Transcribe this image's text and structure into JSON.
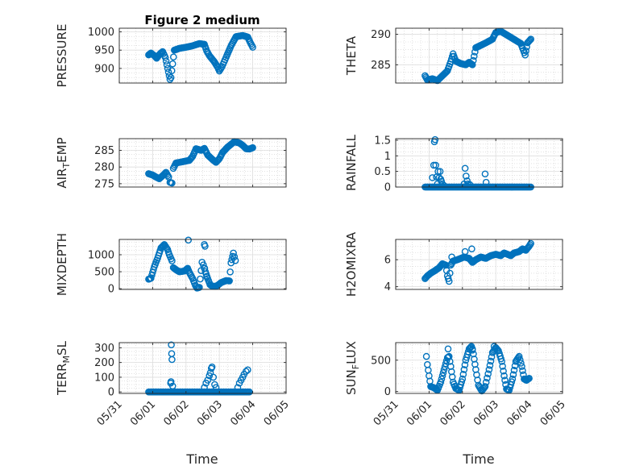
{
  "title": "Figure 2 medium",
  "colors": {
    "marker": "#0072BD",
    "axis": "#262626",
    "grid": "#cfcfcf",
    "background": "#ffffff"
  },
  "chart_data": [
    {
      "type": "scatter",
      "ylabel": "PRESSURE",
      "ylim": [
        860,
        1010
      ],
      "yticks": [
        900,
        950,
        1000
      ],
      "xlim": [
        0,
        5
      ],
      "xticks": [
        0,
        1,
        2,
        3,
        4,
        5
      ],
      "xticklabels": [
        "05/31",
        "06/01",
        "06/02",
        "06/03",
        "06/04",
        "06/05"
      ],
      "grid": true,
      "keypoints": [
        [
          0.88,
          937
        ],
        [
          0.95,
          942
        ],
        [
          1.05,
          935
        ],
        [
          1.12,
          928
        ],
        [
          1.22,
          940
        ],
        [
          1.3,
          946
        ],
        [
          1.38,
          930
        ],
        [
          1.45,
          900
        ],
        [
          1.52,
          870
        ],
        [
          1.55,
          875
        ],
        [
          1.65,
          950
        ],
        [
          1.8,
          955
        ],
        [
          2.0,
          958
        ],
        [
          2.2,
          962
        ],
        [
          2.4,
          968
        ],
        [
          2.55,
          966
        ],
        [
          2.62,
          948
        ],
        [
          2.7,
          935
        ],
        [
          2.85,
          918
        ],
        [
          2.95,
          903
        ],
        [
          3.0,
          893
        ],
        [
          3.08,
          905
        ],
        [
          3.2,
          930
        ],
        [
          3.35,
          962
        ],
        [
          3.5,
          987
        ],
        [
          3.7,
          990
        ],
        [
          3.85,
          986
        ],
        [
          3.92,
          972
        ],
        [
          4.0,
          958
        ]
      ]
    },
    {
      "type": "scatter",
      "ylabel": "THETA",
      "ylim": [
        282,
        291
      ],
      "yticks": [
        285,
        290
      ],
      "xlim": [
        0,
        5
      ],
      "xticks": [
        0,
        1,
        2,
        3,
        4,
        5
      ],
      "xticklabels": [
        "05/31",
        "06/01",
        "06/02",
        "06/03",
        "06/04",
        "06/05"
      ],
      "grid": true,
      "keypoints": [
        [
          0.88,
          283.2
        ],
        [
          0.95,
          282.5
        ],
        [
          1.1,
          282.7
        ],
        [
          1.25,
          282.4
        ],
        [
          1.4,
          283.2
        ],
        [
          1.55,
          284.0
        ],
        [
          1.65,
          285.5
        ],
        [
          1.72,
          286.8
        ],
        [
          1.8,
          285.6
        ],
        [
          1.95,
          285.2
        ],
        [
          2.1,
          285.0
        ],
        [
          2.2,
          285.4
        ],
        [
          2.3,
          285.0
        ],
        [
          2.4,
          287.8
        ],
        [
          2.55,
          288.2
        ],
        [
          2.7,
          288.6
        ],
        [
          2.9,
          289.2
        ],
        [
          3.0,
          290.3
        ],
        [
          3.15,
          290.5
        ],
        [
          3.3,
          290.0
        ],
        [
          3.45,
          289.5
        ],
        [
          3.6,
          289.0
        ],
        [
          3.75,
          288.5
        ],
        [
          3.88,
          286.6
        ],
        [
          3.95,
          288.6
        ],
        [
          4.05,
          289.2
        ]
      ]
    },
    {
      "type": "scatter",
      "ylabel": "AIR_TEMP",
      "ylim": [
        274,
        288.5
      ],
      "yticks": [
        275,
        280,
        285
      ],
      "xlim": [
        0,
        5
      ],
      "xticks": [
        0,
        1,
        2,
        3,
        4,
        5
      ],
      "xticklabels": [
        "05/31",
        "06/01",
        "06/02",
        "06/03",
        "06/04",
        "06/05"
      ],
      "grid": true,
      "keypoints": [
        [
          0.88,
          278.0
        ],
        [
          1.0,
          277.6
        ],
        [
          1.1,
          277.0
        ],
        [
          1.2,
          276.5
        ],
        [
          1.3,
          277.4
        ],
        [
          1.4,
          278.4
        ],
        [
          1.48,
          277.0
        ],
        [
          1.52,
          275.4
        ],
        [
          1.58,
          275.2
        ],
        [
          1.62,
          279.6
        ],
        [
          1.7,
          281.2
        ],
        [
          1.9,
          281.6
        ],
        [
          2.1,
          282.0
        ],
        [
          2.2,
          283.2
        ],
        [
          2.3,
          285.5
        ],
        [
          2.45,
          285.0
        ],
        [
          2.55,
          285.6
        ],
        [
          2.65,
          283.6
        ],
        [
          2.8,
          282.2
        ],
        [
          2.9,
          281.4
        ],
        [
          3.0,
          282.5
        ],
        [
          3.1,
          284.4
        ],
        [
          3.25,
          286.0
        ],
        [
          3.45,
          287.6
        ],
        [
          3.6,
          287.2
        ],
        [
          3.7,
          286.5
        ],
        [
          3.8,
          285.5
        ],
        [
          3.9,
          285.4
        ],
        [
          4.0,
          285.8
        ]
      ]
    },
    {
      "type": "scatter",
      "ylabel": "RAINFALL",
      "ylim": [
        0,
        1.55
      ],
      "yticks": [
        0,
        0.5,
        1,
        1.5
      ],
      "yticklabels": [
        "0",
        "0.5",
        "1",
        "1.5"
      ],
      "xlim": [
        0,
        5
      ],
      "xticks": [
        0,
        1,
        2,
        3,
        4,
        5
      ],
      "xticklabels": [
        "05/31",
        "06/01",
        "06/02",
        "06/03",
        "06/04",
        "06/05"
      ],
      "grid": true,
      "baseline": {
        "from": 0.88,
        "to": 4.05,
        "count": 150,
        "value": 0
      },
      "points": [
        [
          1.1,
          0.3
        ],
        [
          1.14,
          0.7
        ],
        [
          1.16,
          1.45
        ],
        [
          1.18,
          1.52
        ],
        [
          1.2,
          0.7
        ],
        [
          1.22,
          0.32
        ],
        [
          1.25,
          0.1
        ],
        [
          1.27,
          0.5
        ],
        [
          1.3,
          0.3
        ],
        [
          1.33,
          0.5
        ],
        [
          1.35,
          0.25
        ],
        [
          1.37,
          0.18
        ],
        [
          1.4,
          0.1
        ],
        [
          1.44,
          0.05
        ],
        [
          2.05,
          0.1
        ],
        [
          2.08,
          0.6
        ],
        [
          2.11,
          0.35
        ],
        [
          2.14,
          0.2
        ],
        [
          2.16,
          0.1
        ],
        [
          2.22,
          0.08
        ],
        [
          2.68,
          0.42
        ],
        [
          2.71,
          0.15
        ]
      ]
    },
    {
      "type": "scatter",
      "ylabel": "MIXDEPTH",
      "ylim": [
        -20,
        1450
      ],
      "yticks": [
        0,
        500,
        1000
      ],
      "xlim": [
        0,
        5
      ],
      "xticks": [
        0,
        1,
        2,
        3,
        4,
        5
      ],
      "xticklabels": [
        "05/31",
        "06/01",
        "06/02",
        "06/03",
        "06/04",
        "06/05"
      ],
      "grid": true,
      "keypoints": [
        [
          0.88,
          280
        ],
        [
          0.95,
          310
        ],
        [
          1.05,
          650
        ],
        [
          1.15,
          900
        ],
        [
          1.25,
          1200
        ],
        [
          1.35,
          1300
        ],
        [
          1.45,
          1150
        ],
        [
          1.5,
          1000
        ],
        [
          1.58,
          820
        ],
        [
          1.62,
          620
        ],
        [
          1.7,
          560
        ],
        [
          1.8,
          500
        ],
        [
          1.95,
          520
        ],
        [
          2.05,
          600
        ],
        [
          2.1,
          480
        ],
        [
          2.2,
          300
        ],
        [
          2.28,
          100
        ],
        [
          2.33,
          20
        ],
        [
          2.4,
          40
        ],
        [
          2.48,
          780
        ],
        [
          2.52,
          700
        ],
        [
          2.58,
          500
        ],
        [
          2.65,
          300
        ],
        [
          2.72,
          120
        ],
        [
          2.78,
          80
        ],
        [
          2.88,
          70
        ],
        [
          2.95,
          100
        ],
        [
          3.05,
          180
        ],
        [
          3.15,
          220
        ],
        [
          3.2,
          240
        ],
        [
          3.3,
          230
        ],
        [
          3.35,
          760
        ],
        [
          3.42,
          1050
        ],
        [
          3.48,
          830
        ]
      ],
      "extra": [
        [
          2.07,
          1430
        ],
        [
          2.55,
          1300
        ],
        [
          2.57,
          1250
        ],
        [
          2.56,
          600
        ],
        [
          2.62,
          350
        ]
      ]
    },
    {
      "type": "scatter",
      "ylabel": "H2OMIXRA",
      "ylim": [
        3.8,
        7.5
      ],
      "yticks": [
        4,
        6
      ],
      "xlim": [
        0,
        5
      ],
      "xticks": [
        0,
        1,
        2,
        3,
        4,
        5
      ],
      "xticklabels": [
        "05/31",
        "06/01",
        "06/02",
        "06/03",
        "06/04",
        "06/05"
      ],
      "grid": true,
      "keypoints": [
        [
          0.88,
          4.6
        ],
        [
          0.95,
          4.8
        ],
        [
          1.05,
          5.0
        ],
        [
          1.15,
          5.15
        ],
        [
          1.3,
          5.4
        ],
        [
          1.4,
          5.7
        ],
        [
          1.5,
          5.6
        ],
        [
          1.55,
          4.8
        ],
        [
          1.6,
          4.4
        ],
        [
          1.65,
          5.6
        ],
        [
          1.72,
          5.9
        ],
        [
          1.85,
          6.0
        ],
        [
          1.95,
          6.1
        ],
        [
          2.05,
          6.2
        ],
        [
          2.2,
          6.1
        ],
        [
          2.3,
          5.8
        ],
        [
          2.4,
          6.0
        ],
        [
          2.55,
          6.2
        ],
        [
          2.7,
          6.1
        ],
        [
          2.85,
          6.3
        ],
        [
          3.0,
          6.4
        ],
        [
          3.15,
          6.3
        ],
        [
          3.25,
          6.5
        ],
        [
          3.35,
          6.4
        ],
        [
          3.45,
          6.3
        ],
        [
          3.55,
          6.5
        ],
        [
          3.7,
          6.6
        ],
        [
          3.8,
          6.8
        ],
        [
          3.9,
          6.7
        ],
        [
          4.0,
          7.0
        ],
        [
          4.05,
          7.2
        ]
      ],
      "extra": [
        [
          1.68,
          6.2
        ],
        [
          2.28,
          6.8
        ],
        [
          2.08,
          6.6
        ]
      ]
    },
    {
      "type": "scatter",
      "ylabel": "TERR_MSL",
      "ylim": [
        -10,
        335
      ],
      "yticks": [
        0,
        100,
        200,
        300
      ],
      "xlim": [
        0,
        5
      ],
      "xticks": [
        0,
        1,
        2,
        3,
        4,
        5
      ],
      "xticklabels": [
        "05/31",
        "06/01",
        "06/02",
        "06/03",
        "06/04",
        "06/05"
      ],
      "grid": true,
      "baseline": {
        "from": 0.88,
        "to": 3.9,
        "count": 110,
        "value": 0
      },
      "points": [
        [
          1.56,
          320
        ],
        [
          1.57,
          260
        ],
        [
          1.58,
          220
        ],
        [
          1.54,
          60
        ],
        [
          1.55,
          70
        ],
        [
          1.6,
          40
        ],
        [
          2.55,
          30
        ],
        [
          2.6,
          60
        ],
        [
          2.65,
          80
        ],
        [
          2.7,
          110
        ],
        [
          2.73,
          130
        ],
        [
          2.76,
          160
        ],
        [
          2.78,
          170
        ],
        [
          2.82,
          100
        ],
        [
          2.86,
          50
        ],
        [
          2.9,
          30
        ],
        [
          3.55,
          30
        ],
        [
          3.6,
          60
        ],
        [
          3.65,
          80
        ],
        [
          3.7,
          100
        ],
        [
          3.74,
          120
        ],
        [
          3.8,
          140
        ],
        [
          3.85,
          150
        ]
      ]
    },
    {
      "type": "scatter",
      "ylabel": "SUN_FLUX",
      "ylim": [
        -30,
        780
      ],
      "yticks": [
        0,
        500
      ],
      "xlim": [
        0,
        5
      ],
      "xticks": [
        0,
        1,
        2,
        3,
        4,
        5
      ],
      "xticklabels": [
        "05/31",
        "06/01",
        "06/02",
        "06/03",
        "06/04",
        "06/05"
      ],
      "grid": true,
      "keypoints": [
        [
          0.92,
          560
        ],
        [
          0.95,
          430
        ],
        [
          1.0,
          250
        ],
        [
          1.05,
          80
        ],
        [
          1.15,
          60
        ],
        [
          1.25,
          20
        ],
        [
          1.35,
          150
        ],
        [
          1.45,
          350
        ],
        [
          1.55,
          540
        ],
        [
          1.6,
          560
        ],
        [
          1.65,
          400
        ],
        [
          1.72,
          150
        ],
        [
          1.8,
          50
        ],
        [
          1.9,
          20
        ],
        [
          2.0,
          200
        ],
        [
          2.1,
          500
        ],
        [
          2.2,
          680
        ],
        [
          2.27,
          720
        ],
        [
          2.33,
          600
        ],
        [
          2.4,
          350
        ],
        [
          2.48,
          100
        ],
        [
          2.58,
          10
        ],
        [
          2.68,
          80
        ],
        [
          2.8,
          350
        ],
        [
          2.9,
          620
        ],
        [
          3.0,
          700
        ],
        [
          3.08,
          650
        ],
        [
          3.18,
          480
        ],
        [
          3.25,
          250
        ],
        [
          3.32,
          40
        ],
        [
          3.4,
          20
        ],
        [
          3.5,
          200
        ],
        [
          3.6,
          480
        ],
        [
          3.7,
          560
        ],
        [
          3.78,
          400
        ],
        [
          3.85,
          200
        ],
        [
          3.92,
          180
        ],
        [
          4.0,
          210
        ]
      ],
      "extra": [
        [
          1.57,
          680
        ],
        [
          2.3,
          680
        ],
        [
          2.95,
          720
        ]
      ]
    }
  ],
  "x_axis_title": "Time",
  "x_axis_title_right": "Time"
}
